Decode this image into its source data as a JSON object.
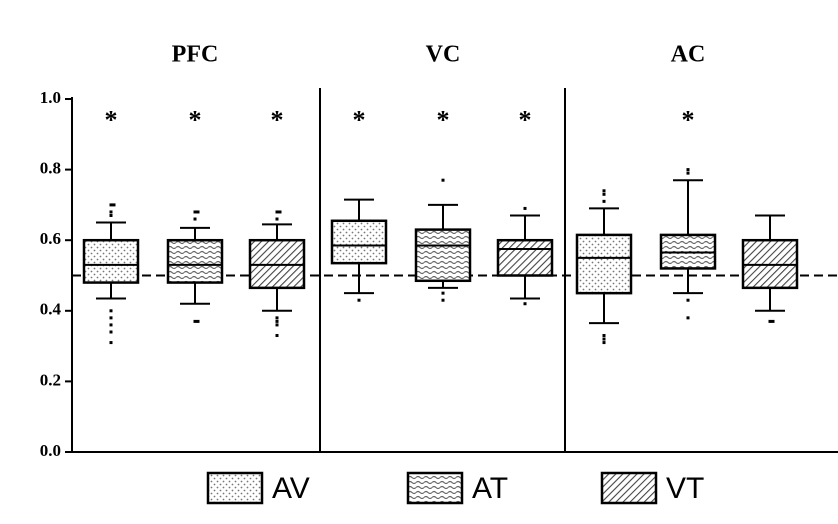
{
  "chart_data": {
    "type": "box",
    "ylim": [
      0,
      1
    ],
    "yticks": [
      {
        "value": 0,
        "label": "0.0"
      },
      {
        "value": 0.2,
        "label": "0.2"
      },
      {
        "value": 0.4,
        "label": "0.4"
      },
      {
        "value": 0.6,
        "label": "0.6"
      },
      {
        "value": 0.8,
        "label": "0.8"
      },
      {
        "value": 1,
        "label": "1.0"
      }
    ],
    "reference_line": 0.5,
    "series": [
      {
        "name": "AV",
        "color": "#ffffff",
        "pattern": "dots"
      },
      {
        "name": "AT",
        "color": "#ffffff",
        "pattern": "waves"
      },
      {
        "name": "VT",
        "color": "#ffffff",
        "pattern": "hatch"
      }
    ],
    "panels": [
      {
        "title": "PFC",
        "boxes": [
          {
            "whisker_low": 0.435,
            "q1": 0.48,
            "median": 0.53,
            "q3": 0.6,
            "whisker_high": 0.65,
            "outliers": [
              0.67,
              0.68,
              0.7,
              0.7,
              0.4,
              0.38,
              0.36,
              0.34,
              0.31
            ],
            "annotation": "*"
          },
          {
            "whisker_low": 0.42,
            "q1": 0.48,
            "median": 0.53,
            "q3": 0.6,
            "whisker_high": 0.635,
            "outliers": [
              0.66,
              0.68,
              0.68,
              0.37,
              0.37
            ],
            "annotation": "*"
          },
          {
            "whisker_low": 0.4,
            "q1": 0.465,
            "median": 0.53,
            "q3": 0.6,
            "whisker_high": 0.645,
            "outliers": [
              0.66,
              0.68,
              0.68,
              0.38,
              0.37,
              0.36,
              0.33
            ],
            "annotation": "*"
          }
        ]
      },
      {
        "title": "VC",
        "boxes": [
          {
            "whisker_low": 0.45,
            "q1": 0.535,
            "median": 0.585,
            "q3": 0.655,
            "whisker_high": 0.715,
            "outliers": [
              0.43
            ],
            "annotation": "*"
          },
          {
            "whisker_low": 0.465,
            "q1": 0.485,
            "median": 0.585,
            "q3": 0.63,
            "whisker_high": 0.7,
            "outliers": [
              0.77,
              0.45,
              0.43
            ],
            "annotation": "*"
          },
          {
            "whisker_low": 0.435,
            "q1": 0.5,
            "median": 0.575,
            "q3": 0.6,
            "whisker_high": 0.67,
            "outliers": [
              0.69,
              0.42
            ],
            "annotation": "*"
          }
        ]
      },
      {
        "title": "AC",
        "boxes": [
          {
            "whisker_low": 0.365,
            "q1": 0.45,
            "median": 0.55,
            "q3": 0.615,
            "whisker_high": 0.69,
            "outliers": [
              0.71,
              0.73,
              0.74,
              0.33,
              0.32,
              0.31
            ]
          },
          {
            "whisker_low": 0.45,
            "q1": 0.52,
            "median": 0.565,
            "q3": 0.615,
            "whisker_high": 0.77,
            "outliers": [
              0.79,
              0.8,
              0.43,
              0.38
            ],
            "annotation": "*"
          },
          {
            "whisker_low": 0.4,
            "q1": 0.465,
            "median": 0.53,
            "q3": 0.6,
            "whisker_high": 0.67,
            "outliers": [
              0.37,
              0.37
            ]
          }
        ]
      }
    ]
  }
}
